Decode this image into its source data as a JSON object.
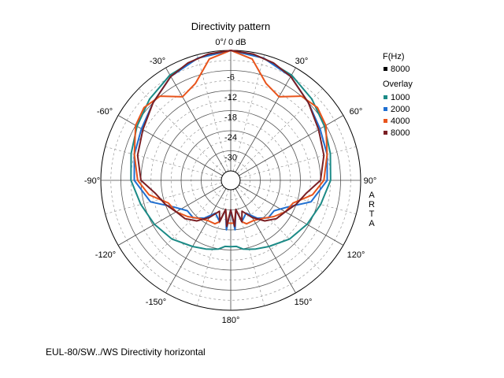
{
  "chart_data": {
    "type": "polar-line",
    "title": "Directivity pattern",
    "top_label": "0°/ 0 dB",
    "angle_labels": [
      "30°",
      "60°",
      "90°",
      "120°",
      "150°",
      "180°",
      "-150°",
      "-120°",
      "-90°",
      "-60°",
      "-30°"
    ],
    "radial_labels": [
      "-6",
      "-12",
      "-18",
      "-24",
      "-30"
    ],
    "r_range_db": [
      -36,
      0
    ],
    "side_text": [
      "A",
      "R",
      "T",
      "A"
    ],
    "legend": {
      "freq_header": "F(Hz)",
      "freq": {
        "label": "8000",
        "color": "#000000"
      },
      "overlay_header": "Overlay",
      "overlay": [
        {
          "label": "1000",
          "color": "#1b8a86"
        },
        {
          "label": "2000",
          "color": "#1f6fd1"
        },
        {
          "label": "4000",
          "color": "#e8541c"
        },
        {
          "label": "8000",
          "color": "#7a1f24"
        }
      ]
    },
    "series": [
      {
        "name": "1000",
        "color": "#1b8a86",
        "angles": [
          0,
          15,
          30,
          45,
          60,
          75,
          90,
          105,
          120,
          135,
          150,
          160,
          165,
          170,
          175,
          180
        ],
        "values": [
          0,
          -1,
          -2.5,
          -4.5,
          -6.5,
          -8,
          -9,
          -11,
          -12.5,
          -14,
          -16,
          -17,
          -17.5,
          -18,
          -19,
          -19
        ]
      },
      {
        "name": "2000",
        "color": "#1f6fd1",
        "angles": [
          0,
          15,
          30,
          45,
          60,
          75,
          90,
          105,
          115,
          125,
          135,
          145,
          155,
          165,
          170,
          175,
          180
        ],
        "values": [
          0,
          -1,
          -3,
          -6,
          -8,
          -9,
          -10,
          -14,
          -20,
          -23,
          -23,
          -25,
          -28,
          -26,
          -30,
          -24,
          -30
        ]
      },
      {
        "name": "4000",
        "color": "#e8541c",
        "angles": [
          0,
          10,
          20,
          30,
          40,
          50,
          60,
          75,
          90,
          100,
          110,
          120,
          130,
          140,
          150,
          160,
          165,
          170,
          175,
          180
        ],
        "values": [
          0,
          -2,
          -8,
          -10,
          -6,
          -5,
          -6,
          -9,
          -11,
          -14,
          -19,
          -20,
          -22,
          -24,
          -25,
          -25,
          -26,
          -30,
          -26,
          -26
        ]
      },
      {
        "name": "8000",
        "color": "#7a1f24",
        "angles": [
          0,
          10,
          20,
          30,
          45,
          60,
          75,
          90,
          100,
          110,
          120,
          130,
          140,
          150,
          160,
          165,
          170,
          175,
          180
        ],
        "values": [
          0,
          -0.5,
          -1.5,
          -3,
          -6,
          -8.5,
          -10,
          -12,
          -16,
          -18,
          -20,
          -21,
          -23,
          -26,
          -29,
          -26,
          -30,
          -25,
          -30
        ]
      }
    ]
  },
  "footer": "EUL-80/SW../WS  Directivity horizontal"
}
